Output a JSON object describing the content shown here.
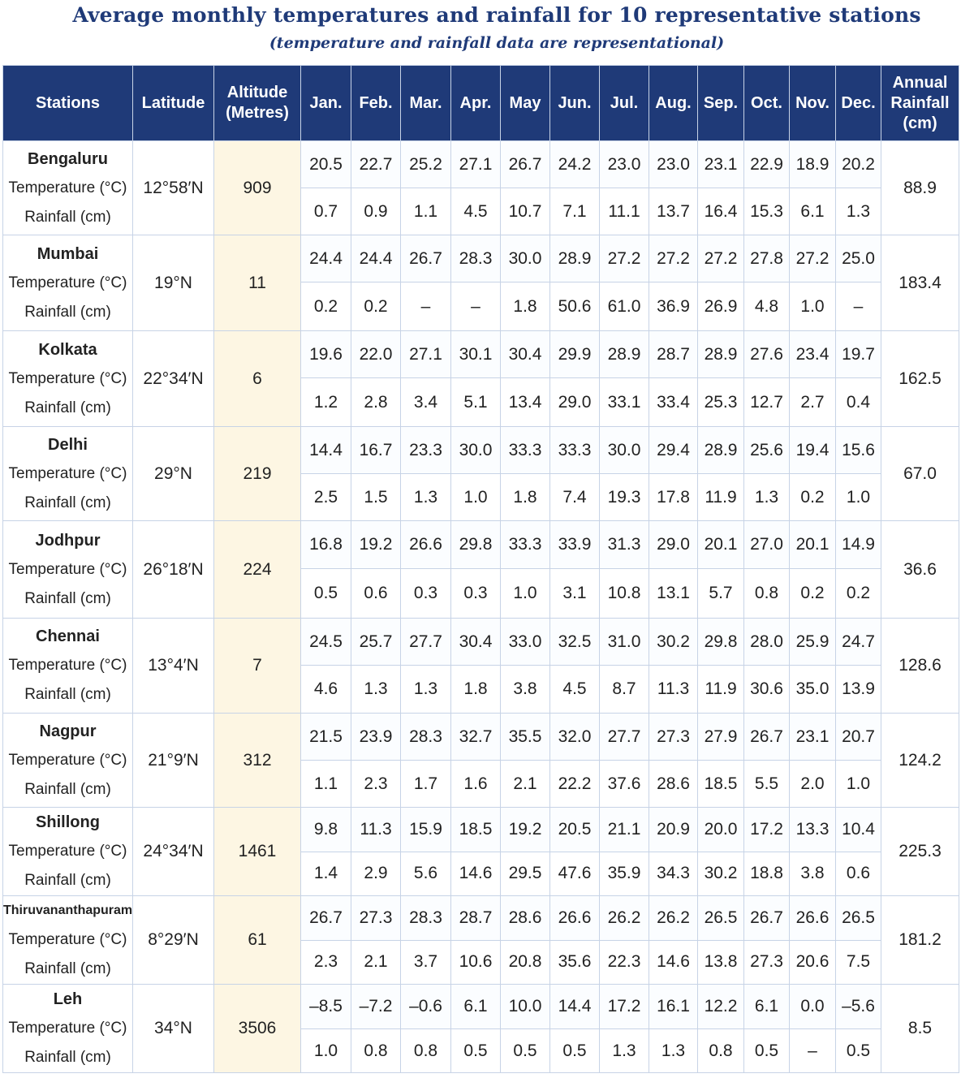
{
  "title": "Average monthly temperatures and rainfall for 10 representative stations",
  "subtitle": "(temperature and rainfall data are representational)",
  "headers": {
    "stations": "Stations",
    "latitude": "Latitude",
    "altitude": "Altitude\n(Metres)",
    "months": [
      "Jan.",
      "Feb.",
      "Mar.",
      "Apr.",
      "May",
      "Jun.",
      "Jul.",
      "Aug.",
      "Sep.",
      "Oct.",
      "Nov.",
      "Dec."
    ],
    "annual": "Annual\nRainfall\n(cm)"
  },
  "row_labels": {
    "temperature": "Temperature (°C)",
    "rainfall": "Rainfall (cm)"
  },
  "stations": [
    {
      "name": "Bengaluru",
      "latitude": "12°58′N",
      "altitude": "909",
      "temperature": [
        "20.5",
        "22.7",
        "25.2",
        "27.1",
        "26.7",
        "24.2",
        "23.0",
        "23.0",
        "23.1",
        "22.9",
        "18.9",
        "20.2"
      ],
      "rainfall": [
        "0.7",
        "0.9",
        "1.1",
        "4.5",
        "10.7",
        "7.1",
        "11.1",
        "13.7",
        "16.4",
        "15.3",
        "6.1",
        "1.3"
      ],
      "annual": "88.9"
    },
    {
      "name": "Mumbai",
      "latitude": "19°N",
      "altitude": "11",
      "temperature": [
        "24.4",
        "24.4",
        "26.7",
        "28.3",
        "30.0",
        "28.9",
        "27.2",
        "27.2",
        "27.2",
        "27.8",
        "27.2",
        "25.0"
      ],
      "rainfall": [
        "0.2",
        "0.2",
        "–",
        "–",
        "1.8",
        "50.6",
        "61.0",
        "36.9",
        "26.9",
        "4.8",
        "1.0",
        "–"
      ],
      "annual": "183.4"
    },
    {
      "name": "Kolkata",
      "latitude": "22°34′N",
      "altitude": "6",
      "temperature": [
        "19.6",
        "22.0",
        "27.1",
        "30.1",
        "30.4",
        "29.9",
        "28.9",
        "28.7",
        "28.9",
        "27.6",
        "23.4",
        "19.7"
      ],
      "rainfall": [
        "1.2",
        "2.8",
        "3.4",
        "5.1",
        "13.4",
        "29.0",
        "33.1",
        "33.4",
        "25.3",
        "12.7",
        "2.7",
        "0.4"
      ],
      "annual": "162.5"
    },
    {
      "name": "Delhi",
      "latitude": "29°N",
      "altitude": "219",
      "temperature": [
        "14.4",
        "16.7",
        "23.3",
        "30.0",
        "33.3",
        "33.3",
        "30.0",
        "29.4",
        "28.9",
        "25.6",
        "19.4",
        "15.6"
      ],
      "rainfall": [
        "2.5",
        "1.5",
        "1.3",
        "1.0",
        "1.8",
        "7.4",
        "19.3",
        "17.8",
        "11.9",
        "1.3",
        "0.2",
        "1.0"
      ],
      "annual": "67.0"
    },
    {
      "name": "Jodhpur",
      "latitude": "26°18′N",
      "altitude": "224",
      "temperature": [
        "16.8",
        "19.2",
        "26.6",
        "29.8",
        "33.3",
        "33.9",
        "31.3",
        "29.0",
        "20.1",
        "27.0",
        "20.1",
        "14.9"
      ],
      "rainfall": [
        "0.5",
        "0.6",
        "0.3",
        "0.3",
        "1.0",
        "3.1",
        "10.8",
        "13.1",
        "5.7",
        "0.8",
        "0.2",
        "0.2"
      ],
      "annual": "36.6"
    },
    {
      "name": "Chennai",
      "latitude": "13°4′N",
      "altitude": "7",
      "temperature": [
        "24.5",
        "25.7",
        "27.7",
        "30.4",
        "33.0",
        "32.5",
        "31.0",
        "30.2",
        "29.8",
        "28.0",
        "25.9",
        "24.7"
      ],
      "rainfall": [
        "4.6",
        "1.3",
        "1.3",
        "1.8",
        "3.8",
        "4.5",
        "8.7",
        "11.3",
        "11.9",
        "30.6",
        "35.0",
        "13.9"
      ],
      "annual": "128.6"
    },
    {
      "name": "Nagpur",
      "latitude": "21°9′N",
      "altitude": "312",
      "temperature": [
        "21.5",
        "23.9",
        "28.3",
        "32.7",
        "35.5",
        "32.0",
        "27.7",
        "27.3",
        "27.9",
        "26.7",
        "23.1",
        "20.7"
      ],
      "rainfall": [
        "1.1",
        "2.3",
        "1.7",
        "1.6",
        "2.1",
        "22.2",
        "37.6",
        "28.6",
        "18.5",
        "5.5",
        "2.0",
        "1.0"
      ],
      "annual": "124.2"
    },
    {
      "name": "Shillong",
      "latitude": "24°34′N",
      "altitude": "1461",
      "temperature": [
        "9.8",
        "11.3",
        "15.9",
        "18.5",
        "19.2",
        "20.5",
        "21.1",
        "20.9",
        "20.0",
        "17.2",
        "13.3",
        "10.4"
      ],
      "rainfall": [
        "1.4",
        "2.9",
        "5.6",
        "14.6",
        "29.5",
        "47.6",
        "35.9",
        "34.3",
        "30.2",
        "18.8",
        "3.8",
        "0.6"
      ],
      "annual": "225.3"
    },
    {
      "name": "Thiruvananthapuram",
      "latitude": "8°29′N",
      "altitude": "61",
      "temperature": [
        "26.7",
        "27.3",
        "28.3",
        "28.7",
        "28.6",
        "26.6",
        "26.2",
        "26.2",
        "26.5",
        "26.7",
        "26.6",
        "26.5"
      ],
      "rainfall": [
        "2.3",
        "2.1",
        "3.7",
        "10.6",
        "20.8",
        "35.6",
        "22.3",
        "14.6",
        "13.8",
        "27.3",
        "20.6",
        "7.5"
      ],
      "annual": "181.2"
    },
    {
      "name": "Leh",
      "latitude": "34°N",
      "altitude": "3506",
      "temperature": [
        "–8.5",
        "–7.2",
        "–0.6",
        "6.1",
        "10.0",
        "14.4",
        "17.2",
        "16.1",
        "12.2",
        "6.1",
        "0.0",
        "–5.6"
      ],
      "rainfall": [
        "1.0",
        "0.8",
        "0.8",
        "0.5",
        "0.5",
        "0.5",
        "1.3",
        "1.3",
        "0.8",
        "0.5",
        "–",
        "0.5"
      ],
      "annual": "8.5"
    }
  ]
}
